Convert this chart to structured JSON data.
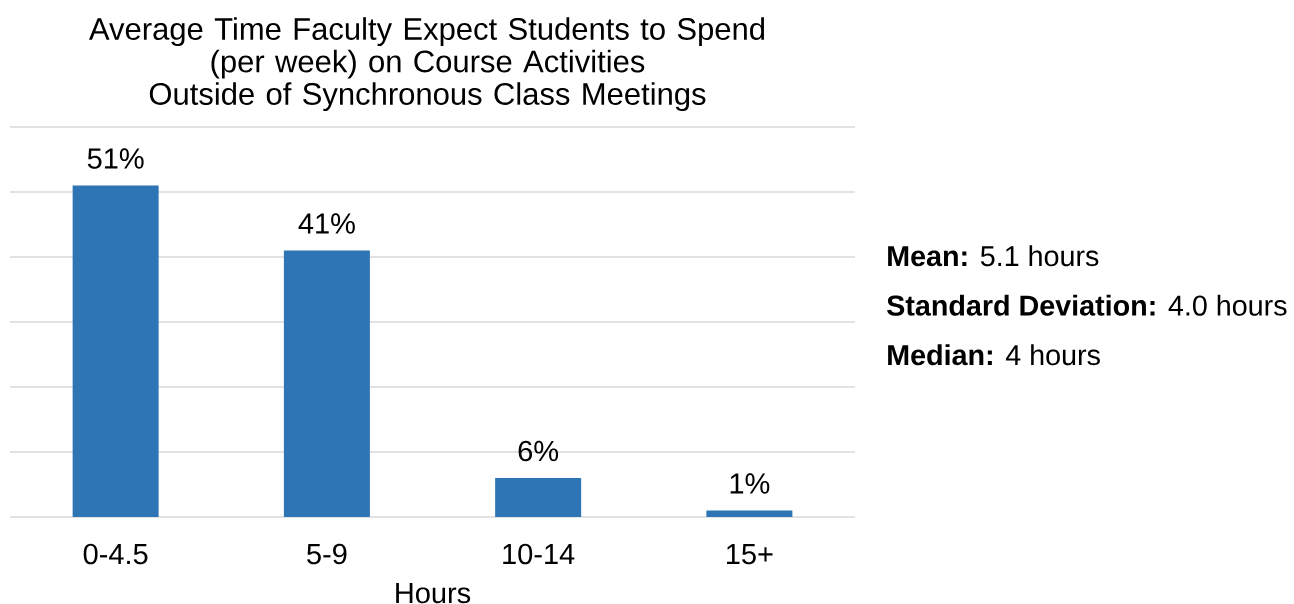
{
  "chart_data": {
    "type": "bar",
    "title": "Average Time Faculty Expect Students to Spend\n(per week) on Course Activities\nOutside of Synchronous Class Meetings",
    "categories": [
      "0-4.5",
      "5-9",
      "10-14",
      "15+"
    ],
    "values": [
      51,
      41,
      6,
      1
    ],
    "value_labels": [
      "51%",
      "41%",
      "6%",
      "1%"
    ],
    "color": "#2e75b6",
    "xlabel": "Hours",
    "ylim": [
      0,
      60
    ],
    "yticks": [
      {
        "value": 0,
        "label": null
      },
      {
        "value": 10,
        "label": null
      },
      {
        "value": 20,
        "label": null
      },
      {
        "value": 30,
        "label": null
      },
      {
        "value": 40,
        "label": null
      },
      {
        "value": 50,
        "label": null
      },
      {
        "value": 60,
        "label": null
      }
    ],
    "grid": "y",
    "tick_labels": "x",
    "annotations": [
      "**Mean:** 5.1 hours",
      "**Standard Deviation:** 4.0 hours",
      "**Median:** 4 hours"
    ]
  }
}
